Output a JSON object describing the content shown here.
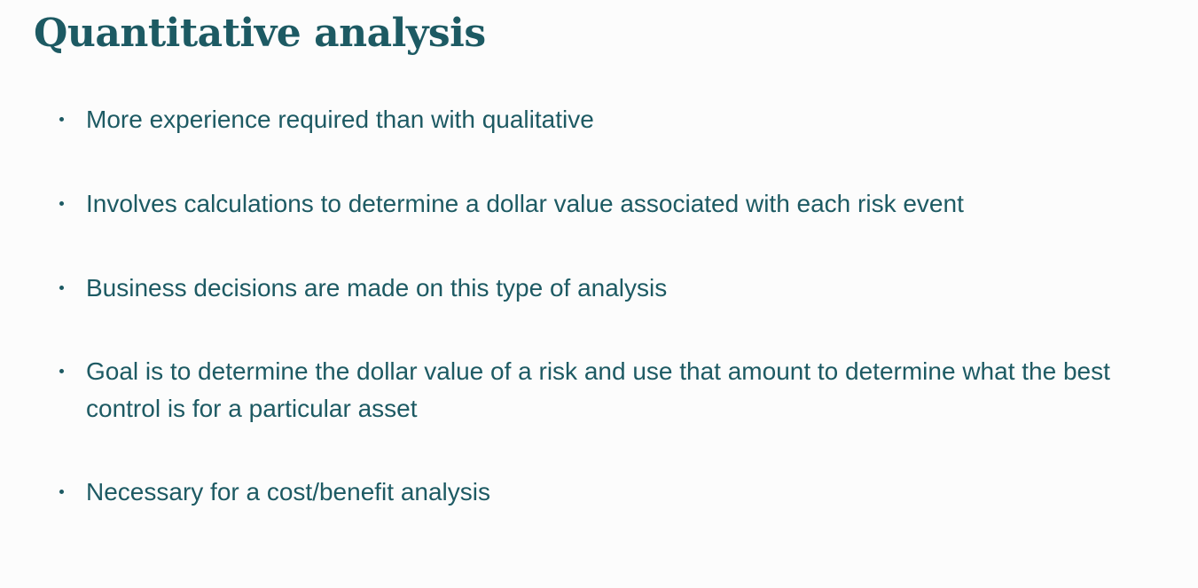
{
  "slide": {
    "title": "Quantitative analysis",
    "bullets": [
      "More experience required than with qualitative",
      "Involves calculations to determine a dollar value associated with each risk event",
      "Business decisions are made on this type of analysis",
      "Goal is to determine the dollar value of a risk and use that amount to determine what the best control is for a particular asset",
      "Necessary for a cost/benefit analysis"
    ]
  },
  "colors": {
    "text": "#1d5a63",
    "background": "#fcfcfc"
  }
}
